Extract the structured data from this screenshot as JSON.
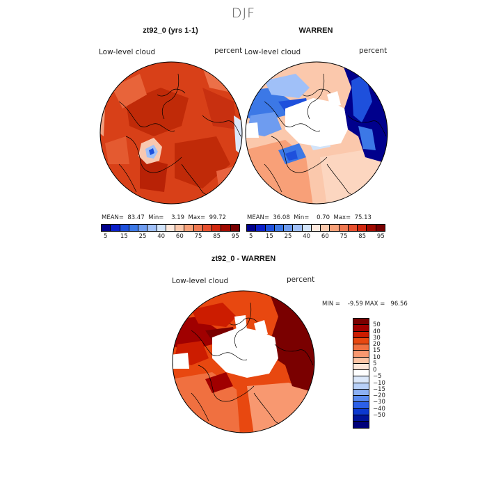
{
  "season": "DJF",
  "panels": [
    {
      "title": "zt92_0 (yrs 1-1)",
      "variable": "Low-level cloud",
      "units": "percent",
      "stats": "MEAN=  83.47  Min=    3.19  Max=  99.72"
    },
    {
      "title": "WARREN",
      "variable": "Low-level cloud",
      "units": "percent",
      "stats": "MEAN=  36.08  Min=    0.70  Max=  75.13"
    },
    {
      "title": "zt92_0 - WARREN",
      "variable": "Low-level cloud",
      "units": "percent",
      "stats": "MIN =    -9.59 MAX =   96.56"
    }
  ],
  "colorbar_top": {
    "colors": [
      "#00008c",
      "#0a1ec8",
      "#1e50dc",
      "#3c78e6",
      "#6e9cf0",
      "#a0c0f8",
      "#d2e4fa",
      "#fde8dc",
      "#fbc8ac",
      "#f8a078",
      "#f07850",
      "#e8502e",
      "#d2280f",
      "#a00a00",
      "#780000"
    ],
    "ticks": [
      "5",
      "15",
      "25",
      "40",
      "60",
      "75",
      "85",
      "95"
    ]
  },
  "colorbar_diff": {
    "colors": [
      "#7a0000",
      "#a00000",
      "#cc1c00",
      "#e84810",
      "#f07040",
      "#f89870",
      "#fcc4a4",
      "#fde6d8",
      "#ffffff",
      "#dce8fa",
      "#b8d0f8",
      "#8cb0f4",
      "#5a8af0",
      "#2c60e8",
      "#0c38d0",
      "#00139a",
      "#00007a"
    ],
    "ticks": [
      "50",
      "40",
      "30",
      "20",
      "15",
      "10",
      "5",
      "0",
      "−5",
      "−10",
      "−15",
      "−20",
      "−30",
      "−40",
      "−50"
    ]
  }
}
